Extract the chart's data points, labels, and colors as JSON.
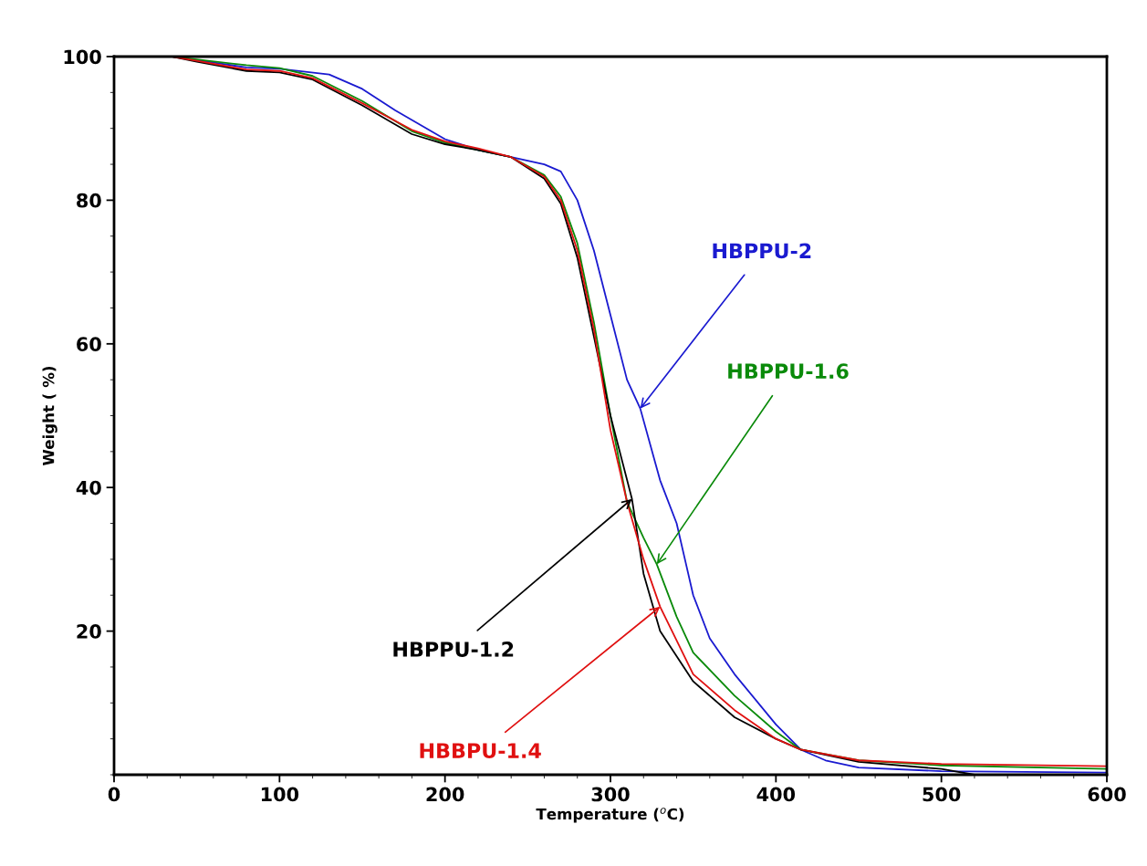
{
  "chart_data": {
    "type": "line",
    "xlabel": "Temperature ($^{o}$C)",
    "ylabel": "Weight ( %)",
    "xlim": [
      0,
      600
    ],
    "ylim": [
      0,
      100
    ],
    "xticks": [
      0,
      100,
      200,
      300,
      400,
      500,
      600
    ],
    "yticks": [
      20,
      40,
      60,
      80,
      100
    ],
    "grid": false,
    "legend": false,
    "line_style": "solid",
    "marker": "none",
    "series": [
      {
        "color": "#1a1ad0",
        "x": [
          35,
          50,
          80,
          100,
          130,
          150,
          170,
          200,
          220,
          240,
          260,
          270,
          280,
          290,
          300,
          310,
          318,
          330,
          340,
          345,
          350,
          360,
          375,
          400,
          415,
          430,
          450,
          500,
          600
        ],
        "values": [
          100,
          99.5,
          98.5,
          98.3,
          97.5,
          95.5,
          92.5,
          88.5,
          87,
          86,
          85,
          84,
          80,
          73,
          64,
          55,
          51,
          41,
          35,
          30,
          25,
          19,
          14,
          7,
          3.5,
          2,
          1,
          0.5,
          0.3
        ]
      },
      {
        "color": "#0a8a0a",
        "x": [
          35,
          50,
          80,
          100,
          120,
          150,
          180,
          200,
          220,
          240,
          260,
          270,
          280,
          290,
          300,
          310,
          320,
          328,
          340,
          350,
          375,
          400,
          415,
          450,
          500,
          600
        ],
        "values": [
          100,
          99.6,
          98.8,
          98.4,
          97.3,
          93.8,
          89.6,
          88,
          87,
          86,
          83.5,
          80.5,
          74,
          63,
          50,
          38,
          33,
          29.3,
          22,
          17,
          11,
          6,
          3.5,
          2,
          1.3,
          0.8
        ]
      },
      {
        "color": "#000000",
        "x": [
          35,
          50,
          80,
          100,
          120,
          150,
          180,
          200,
          220,
          240,
          260,
          270,
          280,
          290,
          300,
          313,
          320,
          330,
          350,
          375,
          400,
          415,
          450,
          500,
          520,
          600
        ],
        "values": [
          100,
          99.3,
          98,
          97.8,
          96.8,
          93.2,
          89.2,
          87.8,
          87,
          86,
          83,
          79.5,
          72,
          61,
          50,
          38.4,
          28,
          20,
          13,
          8,
          5,
          3.5,
          1.8,
          0.8,
          0,
          0
        ]
      },
      {
        "color": "#e01010",
        "x": [
          35,
          50,
          80,
          100,
          120,
          150,
          180,
          200,
          220,
          240,
          260,
          270,
          280,
          290,
          300,
          310,
          320,
          330,
          350,
          375,
          400,
          415,
          450,
          500,
          600
        ],
        "values": [
          100,
          99.4,
          98.2,
          98,
          97,
          93.5,
          89.8,
          88.2,
          87.2,
          86,
          83.3,
          80,
          73,
          62,
          48,
          38,
          30,
          23.4,
          14,
          9,
          5,
          3.5,
          2,
          1.5,
          1.2
        ]
      }
    ],
    "annotations": [
      {
        "text": "HBPPU-2",
        "x": 318,
        "y": 51
      },
      {
        "text": "HBPPU-1.6",
        "x": 328,
        "y": 29.3
      },
      {
        "text": "HBPPU-1.2",
        "x": 313,
        "y": 38.4
      },
      {
        "text": "HBBPU-1.4",
        "x": 330,
        "y": 23.4
      }
    ]
  }
}
